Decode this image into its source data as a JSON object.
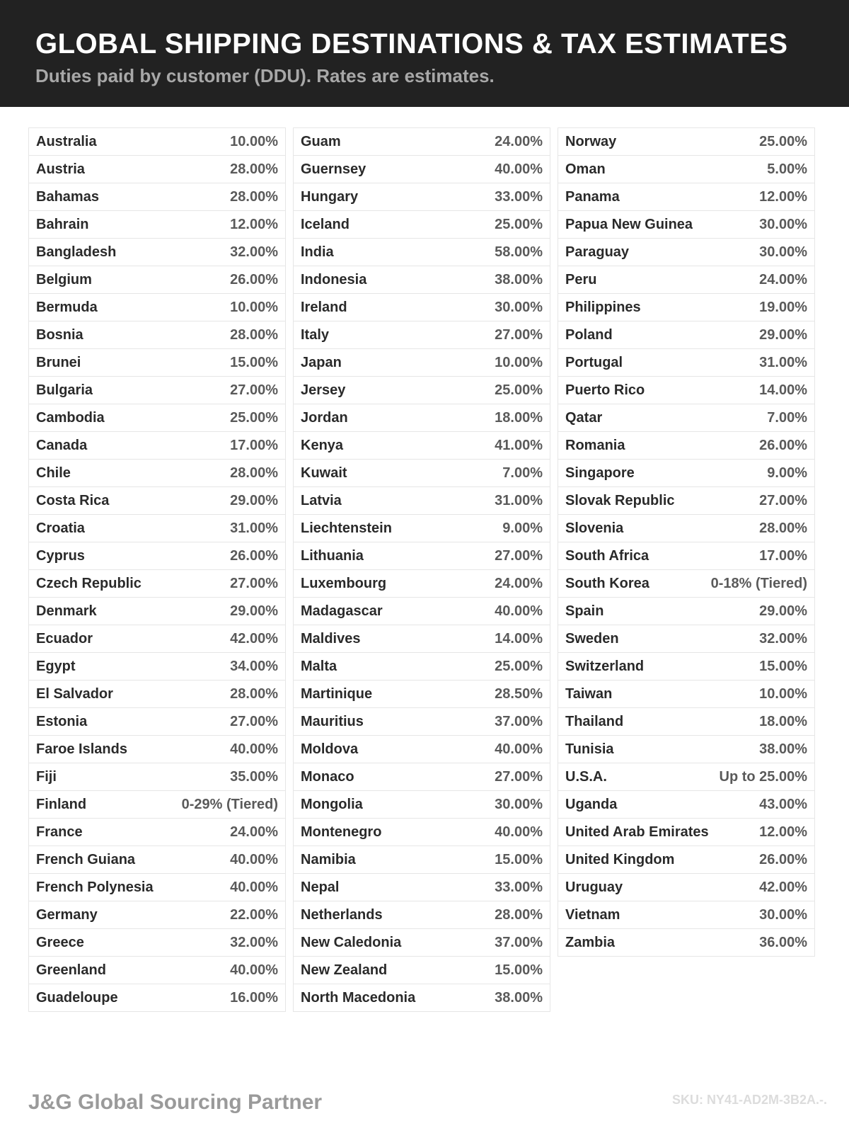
{
  "header": {
    "title": "GLOBAL SHIPPING DESTINATIONS & TAX ESTIMATES",
    "subtitle": "Duties paid by customer (DDU). Rates are estimates."
  },
  "columns": [
    [
      {
        "country": "Australia",
        "rate": "10.00%"
      },
      {
        "country": "Austria",
        "rate": "28.00%"
      },
      {
        "country": "Bahamas",
        "rate": "28.00%"
      },
      {
        "country": "Bahrain",
        "rate": "12.00%"
      },
      {
        "country": "Bangladesh",
        "rate": "32.00%"
      },
      {
        "country": "Belgium",
        "rate": "26.00%"
      },
      {
        "country": "Bermuda",
        "rate": "10.00%"
      },
      {
        "country": "Bosnia",
        "rate": "28.00%"
      },
      {
        "country": "Brunei",
        "rate": "15.00%"
      },
      {
        "country": "Bulgaria",
        "rate": "27.00%"
      },
      {
        "country": "Cambodia",
        "rate": "25.00%"
      },
      {
        "country": "Canada",
        "rate": "17.00%"
      },
      {
        "country": "Chile",
        "rate": "28.00%"
      },
      {
        "country": "Costa Rica",
        "rate": "29.00%"
      },
      {
        "country": "Croatia",
        "rate": "31.00%"
      },
      {
        "country": "Cyprus",
        "rate": "26.00%"
      },
      {
        "country": "Czech Republic",
        "rate": "27.00%"
      },
      {
        "country": "Denmark",
        "rate": "29.00%"
      },
      {
        "country": "Ecuador",
        "rate": "42.00%"
      },
      {
        "country": "Egypt",
        "rate": "34.00%"
      },
      {
        "country": "El Salvador",
        "rate": "28.00%"
      },
      {
        "country": "Estonia",
        "rate": "27.00%"
      },
      {
        "country": "Faroe Islands",
        "rate": "40.00%"
      },
      {
        "country": "Fiji",
        "rate": "35.00%"
      },
      {
        "country": "Finland",
        "rate": "0-29% (Tiered)"
      },
      {
        "country": "France",
        "rate": "24.00%"
      },
      {
        "country": "French Guiana",
        "rate": "40.00%"
      },
      {
        "country": "French Polynesia",
        "rate": "40.00%"
      },
      {
        "country": "Germany",
        "rate": "22.00%"
      },
      {
        "country": "Greece",
        "rate": "32.00%"
      },
      {
        "country": "Greenland",
        "rate": "40.00%"
      },
      {
        "country": "Guadeloupe",
        "rate": "16.00%"
      }
    ],
    [
      {
        "country": "Guam",
        "rate": "24.00%"
      },
      {
        "country": "Guernsey",
        "rate": "40.00%"
      },
      {
        "country": "Hungary",
        "rate": "33.00%"
      },
      {
        "country": "Iceland",
        "rate": "25.00%"
      },
      {
        "country": "India",
        "rate": "58.00%"
      },
      {
        "country": "Indonesia",
        "rate": "38.00%"
      },
      {
        "country": "Ireland",
        "rate": "30.00%"
      },
      {
        "country": "Italy",
        "rate": "27.00%"
      },
      {
        "country": "Japan",
        "rate": "10.00%"
      },
      {
        "country": "Jersey",
        "rate": "25.00%"
      },
      {
        "country": "Jordan",
        "rate": "18.00%"
      },
      {
        "country": "Kenya",
        "rate": "41.00%"
      },
      {
        "country": "Kuwait",
        "rate": "7.00%"
      },
      {
        "country": "Latvia",
        "rate": "31.00%"
      },
      {
        "country": "Liechtenstein",
        "rate": "9.00%"
      },
      {
        "country": "Lithuania",
        "rate": "27.00%"
      },
      {
        "country": "Luxembourg",
        "rate": "24.00%"
      },
      {
        "country": "Madagascar",
        "rate": "40.00%"
      },
      {
        "country": "Maldives",
        "rate": "14.00%"
      },
      {
        "country": "Malta",
        "rate": "25.00%"
      },
      {
        "country": "Martinique",
        "rate": "28.50%"
      },
      {
        "country": "Mauritius",
        "rate": "37.00%"
      },
      {
        "country": "Moldova",
        "rate": "40.00%"
      },
      {
        "country": "Monaco",
        "rate": "27.00%"
      },
      {
        "country": "Mongolia",
        "rate": "30.00%"
      },
      {
        "country": "Montenegro",
        "rate": "40.00%"
      },
      {
        "country": "Namibia",
        "rate": "15.00%"
      },
      {
        "country": "Nepal",
        "rate": "33.00%"
      },
      {
        "country": "Netherlands",
        "rate": "28.00%"
      },
      {
        "country": "New Caledonia",
        "rate": "37.00%"
      },
      {
        "country": "New Zealand",
        "rate": "15.00%"
      },
      {
        "country": "North Macedonia",
        "rate": "38.00%"
      }
    ],
    [
      {
        "country": "Norway",
        "rate": "25.00%"
      },
      {
        "country": "Oman",
        "rate": "5.00%"
      },
      {
        "country": "Panama",
        "rate": "12.00%"
      },
      {
        "country": "Papua New Guinea",
        "rate": "30.00%"
      },
      {
        "country": "Paraguay",
        "rate": "30.00%"
      },
      {
        "country": "Peru",
        "rate": "24.00%"
      },
      {
        "country": "Philippines",
        "rate": "19.00%"
      },
      {
        "country": "Poland",
        "rate": "29.00%"
      },
      {
        "country": "Portugal",
        "rate": "31.00%"
      },
      {
        "country": "Puerto Rico",
        "rate": "14.00%"
      },
      {
        "country": "Qatar",
        "rate": "7.00%"
      },
      {
        "country": "Romania",
        "rate": "26.00%"
      },
      {
        "country": "Singapore",
        "rate": "9.00%"
      },
      {
        "country": "Slovak Republic",
        "rate": "27.00%"
      },
      {
        "country": "Slovenia",
        "rate": "28.00%"
      },
      {
        "country": "South Africa",
        "rate": "17.00%"
      },
      {
        "country": "South Korea",
        "rate": "0-18% (Tiered)"
      },
      {
        "country": "Spain",
        "rate": "29.00%"
      },
      {
        "country": "Sweden",
        "rate": "32.00%"
      },
      {
        "country": "Switzerland",
        "rate": "15.00%"
      },
      {
        "country": "Taiwan",
        "rate": "10.00%"
      },
      {
        "country": "Thailand",
        "rate": "18.00%"
      },
      {
        "country": "Tunisia",
        "rate": "38.00%"
      },
      {
        "country": "U.S.A.",
        "rate": "Up to 25.00%"
      },
      {
        "country": "Uganda",
        "rate": "43.00%"
      },
      {
        "country": "United Arab Emirates",
        "rate": "12.00%"
      },
      {
        "country": "United Kingdom",
        "rate": "26.00%"
      },
      {
        "country": "Uruguay",
        "rate": "42.00%"
      },
      {
        "country": "Vietnam",
        "rate": "30.00%"
      },
      {
        "country": "Zambia",
        "rate": "36.00%"
      }
    ]
  ],
  "footer": {
    "brand": "J&G Global Sourcing Partner",
    "sku": "SKU: NY41-AD2M-3B2A.-."
  },
  "colors": {
    "header_bg": "#222222",
    "title": "#ffffff",
    "subtitle": "#a8a8a8",
    "border": "#e6e6e6"
  }
}
